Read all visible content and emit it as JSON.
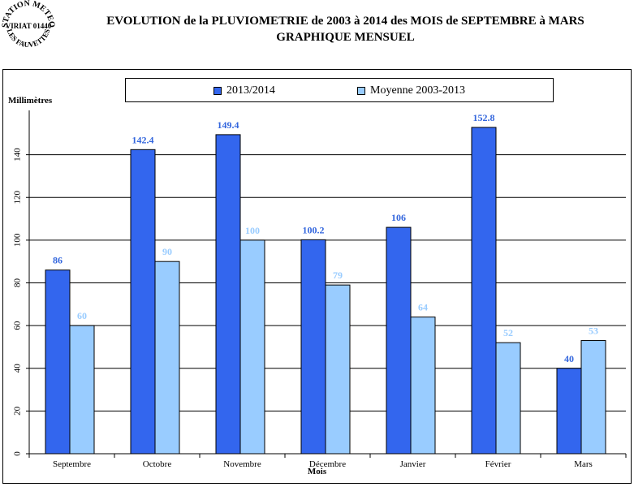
{
  "logo": {
    "lines": [
      "STATION METEO",
      "VIRIAT 01440",
      "LES FAUVETTES"
    ]
  },
  "title_line1": "EVOLUTION de la PLUVIOMETRIE de 2003 à 2014 des MOIS de SEPTEMBRE à MARS",
  "title_line2": "GRAPHIQUE MENSUEL",
  "colors": {
    "series1": "#3366ee",
    "series2": "#99ccff",
    "label1": "#3366dd",
    "label2": "#99ccff",
    "grid": "#000000"
  },
  "chart_data": {
    "type": "bar",
    "title": "EVOLUTION de la PLUVIOMETRIE de 2003 à 2014 des MOIS de SEPTEMBRE à MARS",
    "subtitle": "GRAPHIQUE MENSUEL",
    "xlabel": "Mois",
    "ylabel": "Millimètres",
    "ylim": [
      0,
      160
    ],
    "yticks": [
      0,
      20,
      40,
      60,
      80,
      100,
      120,
      140
    ],
    "grid": true,
    "legend_position": "top",
    "categories": [
      "Septembre",
      "Octobre",
      "Novembre",
      "Décembre",
      "Janvier",
      "Février",
      "Mars"
    ],
    "series": [
      {
        "name": "2013/2014",
        "values": [
          86,
          142.4,
          149.4,
          100.2,
          106,
          152.8,
          40
        ]
      },
      {
        "name": "Moyenne 2003-2013",
        "values": [
          60,
          90,
          100,
          79,
          64,
          52,
          53
        ]
      }
    ]
  }
}
